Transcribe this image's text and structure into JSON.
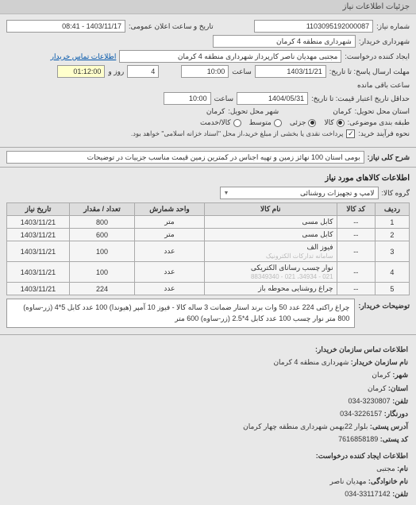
{
  "header": {
    "title": "جزئیات اطلاعات نیاز"
  },
  "meta": {
    "req_num_label": "شماره نیاز:",
    "req_num": "1103095192000087",
    "announce_label": "تاریخ و ساعت اعلان عمومی:",
    "announce_value": "1403/11/17 - 08:41",
    "buyer_muni_label": "شهرداری خریدار:",
    "buyer_muni": "شهرداری منطقه 4 کرمان",
    "creator_label": "ایجاد کننده درخواست:",
    "creator": "مجتبی مهدیان ناصر کارپرداز شهرداری منطقه 4 کرمان",
    "contact_link": "اطلاعات تماس خریدار",
    "deadline_label": "مهلت ارسال پاسخ: تا تاریخ:",
    "deadline_date": "1403/11/21",
    "time_label": "ساعت",
    "deadline_time": "10:00",
    "remain_label": "ساعت باقی مانده",
    "remain_days": "4",
    "days_and": "روز و",
    "remain_time": "01:12:00",
    "validity_label": "حداقل تاریخ اعتبار قیمت: تا تاریخ:",
    "validity_date": "1404/05/31",
    "validity_time": "10:00",
    "delivery_prov_label": "استان محل تحویل:",
    "delivery_prov": "کرمان",
    "delivery_city_label": "شهر محل تحویل:",
    "delivery_city": "کرمان",
    "category_label": "طبقه بندی موضوعی:",
    "cat_goods": "کالا",
    "cat_partial": "جزئی",
    "cat_medium": "متوسط",
    "cat_credit": "کالا/خدمت",
    "purchase_type_label": "نحوه فرآیند خرید:",
    "purchase_cash": "پرداخت نقدی یا بخشی از مبلغ خرید،از محل \"اسناد خزانه اسلامی\" خواهد بود."
  },
  "need": {
    "title_label": "شرح کلی نیاز:",
    "title_text": "بومی استان 100 نهائز زمین و تهیه اجناس در کمترین زمین قیمت مناسب جزییات در توضیحات"
  },
  "goods": {
    "section_title": "اطلاعات کالاهای مورد نیاز",
    "group_label": "گروه کالا:",
    "group_value": "لامپ و تجهیزات روشنائی",
    "columns": {
      "row": "ردیف",
      "code": "کد کالا",
      "name": "نام کالا",
      "unit": "واحد شمارش",
      "qty": "تعداد / مقدار",
      "date": "تاریخ نیاز"
    },
    "rows": [
      {
        "n": "1",
        "code": "--",
        "name": "کابل مسی",
        "unit": "متر",
        "qty": "800",
        "date": "1403/11/21"
      },
      {
        "n": "2",
        "code": "--",
        "name": "کابل مسی",
        "unit": "متر",
        "qty": "600",
        "date": "1403/11/21"
      },
      {
        "n": "3",
        "code": "--",
        "name": "فیوز الف",
        "unit": "عدد",
        "qty": "100",
        "date": "1403/11/21",
        "wm": "سامانه تدارکات الکترونیک"
      },
      {
        "n": "4",
        "code": "--",
        "name": "نوار چسب رسانای الکتریکی",
        "unit": "عدد",
        "qty": "100",
        "date": "1403/11/21",
        "wm": "021 - 34934، 021 - 88349340"
      },
      {
        "n": "5",
        "code": "--",
        "name": "چراغ روشنایی محوطه باز",
        "unit": "عدد",
        "qty": "224",
        "date": "1403/11/21"
      }
    ]
  },
  "buyer_desc": {
    "label": "توضیحات خریدار:",
    "text": "چراغ راکتی 224 عدد 50 وات برند استار ضمانت 3 ساله کالا - فیوز 10 آمپر (هیوندا) 100 عدد کابل 5*4 (زر-ساوه) 800 متر نوار چسب 100 عدد کابل 4*2.5 (زر-ساوه) 600 متر"
  },
  "contact": {
    "section_title": "اطلاعات تماس سازمان خریدار:",
    "org_label": "نام سازمان خریدار:",
    "org": "شهرداری منطقه 4 کرمان",
    "city_label": "شهر:",
    "city": "کرمان",
    "prov_label": "استان:",
    "prov": "کرمان",
    "tel_label": "تلفن:",
    "tel": "3230807-034",
    "fax_label": "دورنگار:",
    "fax": "3226157-034",
    "addr_label": "آدرس پستی:",
    "addr": "بلوار 22بهمن شهرداری منطقه چهار کرمان",
    "postcode_label": "کد پستی:",
    "postcode": "7616858189",
    "creator_title": "اطلاعات ایجاد کننده درخواست:",
    "fname_label": "نام:",
    "fname": "مجتبی",
    "lname_label": "نام خانوادگی:",
    "lname": "مهدیان ناصر",
    "ctel_label": "تلفن:",
    "ctel": "33117142-034"
  }
}
